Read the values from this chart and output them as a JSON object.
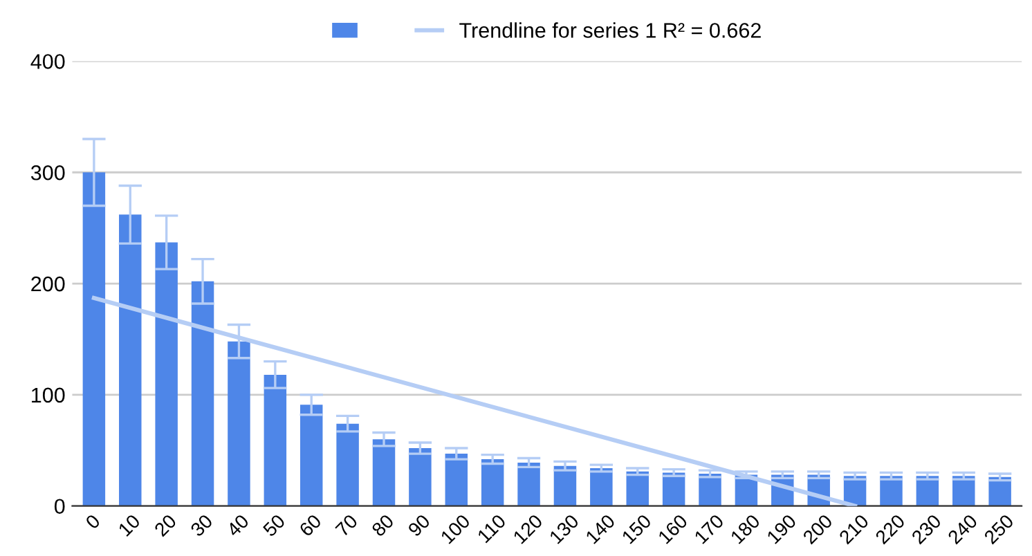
{
  "chart_data": {
    "type": "bar",
    "categories": [
      "0",
      "10",
      "20",
      "30",
      "40",
      "50",
      "60",
      "70",
      "80",
      "90",
      "100",
      "110",
      "120",
      "130",
      "140",
      "150",
      "160",
      "170",
      "180",
      "190",
      "200",
      "210",
      "220",
      "230",
      "240",
      "250"
    ],
    "series": [
      {
        "color": "#4e86e8",
        "values": [
          300,
          262,
          237,
          202,
          148,
          118,
          91,
          74,
          60,
          52,
          47,
          42,
          39,
          36,
          34,
          31,
          30,
          29,
          28,
          28,
          28,
          27,
          27,
          27,
          27,
          26
        ],
        "errors": [
          30,
          26,
          24,
          20,
          15,
          12,
          9,
          7,
          6,
          5,
          5,
          4,
          4,
          4,
          3,
          3,
          3,
          3,
          3,
          3,
          3,
          3,
          3,
          3,
          3,
          3
        ]
      },
      {
        "type": "line",
        "name": "Trendline for series 1 R² = 0.662",
        "color": "#b5cdf5",
        "x": [
          "0",
          "210"
        ],
        "values": [
          187,
          0
        ]
      }
    ],
    "ylim": [
      0,
      400
    ],
    "yticks": [
      0,
      100,
      200,
      300,
      400
    ],
    "grid": "y",
    "legend": "top"
  }
}
